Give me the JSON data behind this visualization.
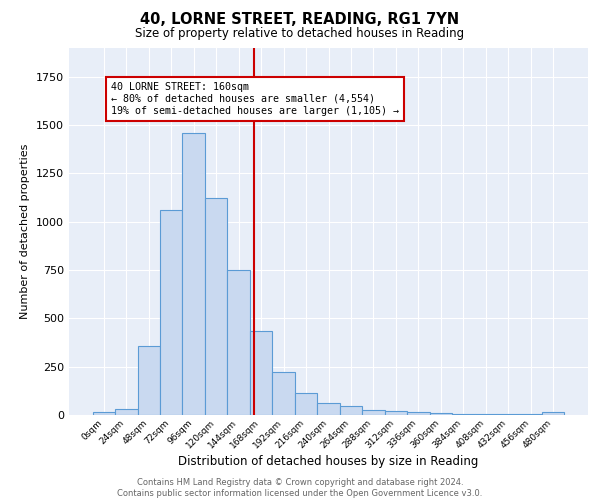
{
  "title": "40, LORNE STREET, READING, RG1 7YN",
  "subtitle": "Size of property relative to detached houses in Reading",
  "xlabel": "Distribution of detached houses by size in Reading",
  "ylabel": "Number of detached properties",
  "bin_labels": [
    "0sqm",
    "24sqm",
    "48sqm",
    "72sqm",
    "96sqm",
    "120sqm",
    "144sqm",
    "168sqm",
    "192sqm",
    "216sqm",
    "240sqm",
    "264sqm",
    "288sqm",
    "312sqm",
    "336sqm",
    "360sqm",
    "384sqm",
    "408sqm",
    "432sqm",
    "456sqm",
    "480sqm"
  ],
  "bin_values": [
    15,
    30,
    355,
    1060,
    1460,
    1120,
    750,
    435,
    220,
    115,
    60,
    47,
    27,
    20,
    18,
    8,
    6,
    5,
    5,
    3,
    15
  ],
  "bar_color": "#c9d9f0",
  "bar_edge_color": "#5b9bd5",
  "vline_x_index": 6.667,
  "annotation_text": "40 LORNE STREET: 160sqm\n← 80% of detached houses are smaller (4,554)\n19% of semi-detached houses are larger (1,105) →",
  "annotation_box_color": "#ffffff",
  "annotation_border_color": "#cc0000",
  "vline_color": "#cc0000",
  "footer_text": "Contains HM Land Registry data © Crown copyright and database right 2024.\nContains public sector information licensed under the Open Government Licence v3.0.",
  "ylim": [
    0,
    1900
  ],
  "background_color": "#e8eef8",
  "grid_color": "#ffffff"
}
